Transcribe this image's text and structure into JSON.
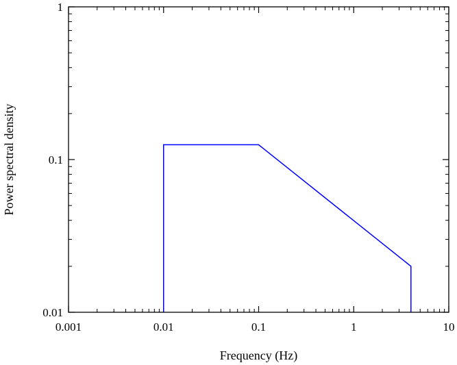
{
  "chart_data": {
    "type": "line",
    "title": "",
    "xlabel": "Frequency (Hz)",
    "ylabel": "Power spectral density",
    "xscale": "log",
    "yscale": "log",
    "xlim": [
      0.001,
      10
    ],
    "ylim": [
      0.01,
      1
    ],
    "grid": false,
    "legend": "none",
    "x_ticks": [
      0.001,
      0.01,
      0.1,
      1,
      10
    ],
    "x_tick_labels": [
      "0.001",
      "0.01",
      "0.1",
      "1",
      "10"
    ],
    "y_ticks": [
      0.01,
      0.1,
      1
    ],
    "y_tick_labels": [
      "0.01",
      "0.1",
      "1"
    ],
    "series": [
      {
        "color": "#0000ff",
        "x": [
          0.01,
          0.01,
          0.1,
          4,
          4
        ],
        "y": [
          0.01,
          0.125,
          0.125,
          0.02,
          0.01
        ]
      }
    ]
  }
}
